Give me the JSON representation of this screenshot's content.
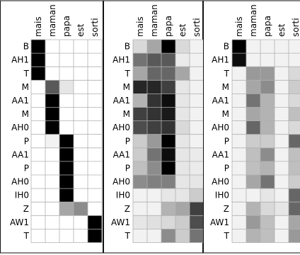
{
  "chart_data": [
    {
      "type": "heatmap",
      "x_labels": [
        "mais",
        "maman",
        "papa",
        "est",
        "sorti"
      ],
      "y_labels": [
        "B",
        "AH1",
        "T",
        "M",
        "AA1",
        "M",
        "AH0",
        "P",
        "AA1",
        "P",
        "AH0",
        "IH0",
        "Z",
        "AW1",
        "T"
      ],
      "values": [
        [
          1.0,
          0.0,
          0.0,
          0.0,
          0.0
        ],
        [
          1.0,
          0.0,
          0.0,
          0.0,
          0.0
        ],
        [
          1.0,
          0.0,
          0.0,
          0.0,
          0.0
        ],
        [
          0.0,
          0.65,
          0.1,
          0.0,
          0.0
        ],
        [
          0.0,
          1.0,
          0.0,
          0.0,
          0.0
        ],
        [
          0.0,
          1.0,
          0.0,
          0.0,
          0.0
        ],
        [
          0.0,
          1.0,
          0.0,
          0.0,
          0.0
        ],
        [
          0.0,
          0.05,
          1.0,
          0.0,
          0.0
        ],
        [
          0.0,
          0.0,
          1.0,
          0.0,
          0.0
        ],
        [
          0.0,
          0.0,
          1.0,
          0.0,
          0.0
        ],
        [
          0.0,
          0.0,
          1.0,
          0.0,
          0.0
        ],
        [
          0.0,
          0.0,
          1.0,
          0.0,
          0.0
        ],
        [
          0.0,
          0.0,
          0.35,
          0.45,
          0.0
        ],
        [
          0.0,
          0.0,
          0.0,
          0.0,
          1.0
        ],
        [
          0.0,
          0.0,
          0.0,
          0.0,
          1.0
        ]
      ],
      "colormap": "greys",
      "grid": true
    },
    {
      "type": "heatmap",
      "x_labels": [
        "mais",
        "maman",
        "papa",
        "est",
        "sorti"
      ],
      "y_labels": [
        "B",
        "AH1",
        "T",
        "M",
        "AA1",
        "M",
        "AH0",
        "P",
        "AA1",
        "P",
        "AH0",
        "IH0",
        "Z",
        "AW1",
        "T"
      ],
      "values": [
        [
          0.15,
          0.35,
          1.0,
          0.15,
          0.05
        ],
        [
          0.55,
          0.65,
          0.65,
          0.08,
          0.05
        ],
        [
          0.35,
          0.6,
          0.6,
          0.35,
          0.05
        ],
        [
          0.85,
          0.85,
          0.75,
          0.1,
          0.05
        ],
        [
          0.3,
          0.8,
          0.95,
          0.1,
          0.05
        ],
        [
          0.75,
          0.8,
          0.9,
          0.1,
          0.05
        ],
        [
          0.7,
          0.75,
          0.8,
          0.15,
          0.05
        ],
        [
          0.2,
          0.4,
          1.0,
          0.1,
          0.05
        ],
        [
          0.2,
          0.55,
          0.95,
          0.1,
          0.08
        ],
        [
          0.25,
          0.45,
          1.0,
          0.1,
          0.08
        ],
        [
          0.45,
          0.5,
          0.5,
          0.1,
          0.1
        ],
        [
          0.05,
          0.05,
          0.1,
          0.1,
          0.2
        ],
        [
          0.05,
          0.05,
          0.3,
          0.35,
          0.75
        ],
        [
          0.1,
          0.12,
          0.15,
          0.2,
          0.7
        ],
        [
          0.05,
          0.05,
          0.45,
          0.2,
          0.55
        ]
      ],
      "colormap": "greys",
      "grid": true
    },
    {
      "type": "heatmap",
      "x_labels": [
        "mais",
        "maman",
        "papa",
        "est",
        "sorti"
      ],
      "y_labels": [
        "B",
        "AH1",
        "T",
        "M",
        "AA1",
        "M",
        "AH0",
        "P",
        "AA1",
        "P",
        "AH0",
        "IH0",
        "Z",
        "AW1",
        "T"
      ],
      "values": [
        [
          1.0,
          0.05,
          0.05,
          0.05,
          0.05
        ],
        [
          0.95,
          0.05,
          0.05,
          0.05,
          0.05
        ],
        [
          0.05,
          0.4,
          0.4,
          0.05,
          0.15
        ],
        [
          0.05,
          0.35,
          0.45,
          0.05,
          0.2
        ],
        [
          0.05,
          0.55,
          0.3,
          0.05,
          0.15
        ],
        [
          0.05,
          0.35,
          0.3,
          0.05,
          0.25
        ],
        [
          0.05,
          0.6,
          0.3,
          0.05,
          0.15
        ],
        [
          0.05,
          0.2,
          0.2,
          0.05,
          0.6
        ],
        [
          0.05,
          0.25,
          0.45,
          0.05,
          0.25
        ],
        [
          0.05,
          0.25,
          0.3,
          0.05,
          0.25
        ],
        [
          0.05,
          0.35,
          0.55,
          0.05,
          0.2
        ],
        [
          0.05,
          0.05,
          0.1,
          0.05,
          0.6
        ],
        [
          0.05,
          0.3,
          0.15,
          0.1,
          0.6
        ],
        [
          0.05,
          0.4,
          0.25,
          0.05,
          0.35
        ],
        [
          0.05,
          0.3,
          0.25,
          0.05,
          0.4
        ]
      ],
      "colormap": "greys",
      "grid": true
    }
  ]
}
